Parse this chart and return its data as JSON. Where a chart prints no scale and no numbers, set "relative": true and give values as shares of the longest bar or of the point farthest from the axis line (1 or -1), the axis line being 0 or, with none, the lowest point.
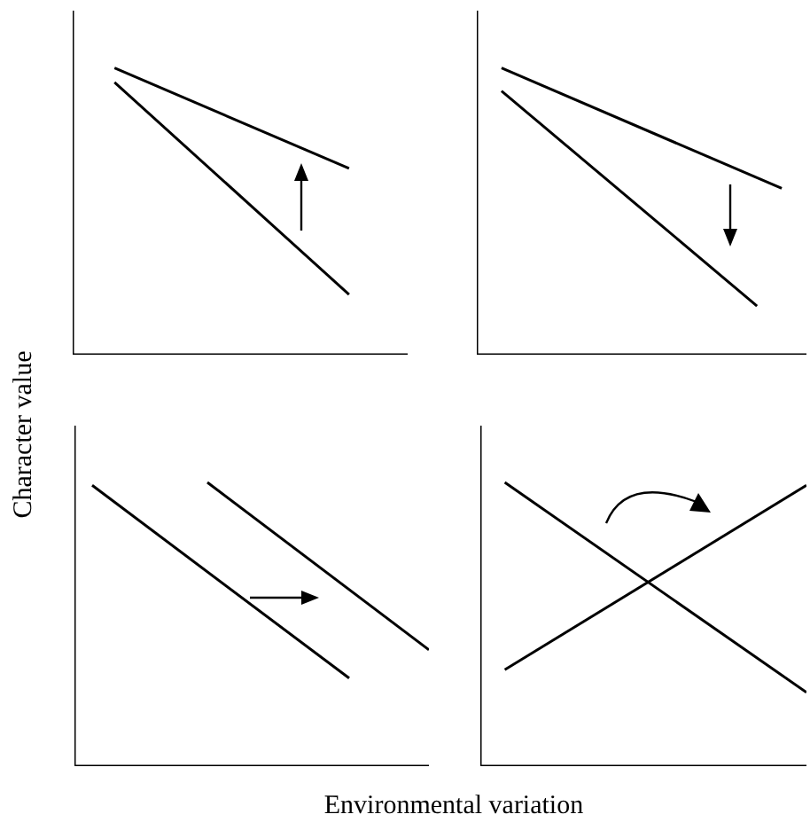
{
  "chart_data": [
    {
      "type": "line",
      "ylabel": "Character value",
      "relative": true,
      "tick_labels": false,
      "legend": false,
      "marker": "none",
      "categories": [
        null,
        null,
        null,
        null,
        null,
        null,
        null,
        null,
        null,
        null,
        null,
        null,
        null,
        null,
        null,
        null,
        null,
        null,
        null,
        null,
        null,
        null,
        null,
        null,
        null,
        null,
        null,
        null,
        null,
        null,
        null,
        null,
        null,
        null,
        null,
        null,
        null,
        null,
        null,
        null,
        null
      ],
      "series": [
        {
          "color": "#000000",
          "values": [
            null,
            null,
            null,
            null,
            null,
            1,
            null,
            null,
            null,
            null,
            null,
            null,
            null,
            null,
            null,
            null,
            null,
            null,
            null,
            null,
            null,
            null,
            null,
            null,
            null,
            null,
            null,
            null,
            null,
            null,
            null,
            null,
            null,
            0.65,
            null,
            null,
            null,
            null,
            null,
            null,
            null
          ]
        },
        {
          "color": "#000000",
          "values": [
            null,
            null,
            null,
            null,
            null,
            0.95,
            null,
            null,
            null,
            null,
            null,
            null,
            null,
            null,
            null,
            null,
            null,
            null,
            null,
            null,
            null,
            null,
            null,
            null,
            null,
            null,
            null,
            null,
            null,
            null,
            null,
            null,
            null,
            0.21,
            null,
            null,
            null,
            null,
            null,
            null,
            null
          ]
        }
      ]
    },
    {
      "type": "line",
      "relative": true,
      "tick_labels": false,
      "legend": false,
      "marker": "none",
      "categories": [
        null,
        null,
        null,
        null,
        null,
        null,
        null,
        null,
        null,
        null,
        null,
        null,
        null,
        null,
        null,
        null,
        null,
        null,
        null,
        null,
        null,
        null,
        null,
        null,
        null,
        null,
        null,
        null,
        null,
        null,
        null,
        null,
        null,
        null,
        null,
        null,
        null,
        null,
        null,
        null,
        null
      ],
      "series": [
        {
          "color": "#000000",
          "values": [
            null,
            null,
            null,
            1,
            null,
            null,
            null,
            null,
            null,
            null,
            null,
            null,
            null,
            null,
            null,
            null,
            null,
            null,
            null,
            null,
            null,
            null,
            null,
            null,
            null,
            null,
            null,
            null,
            null,
            null,
            null,
            null,
            null,
            null,
            null,
            null,
            null,
            0.58,
            null,
            null,
            null
          ]
        },
        {
          "color": "#000000",
          "values": [
            null,
            null,
            null,
            0.92,
            null,
            null,
            null,
            null,
            null,
            null,
            null,
            null,
            null,
            null,
            null,
            null,
            null,
            null,
            null,
            null,
            null,
            null,
            null,
            null,
            null,
            null,
            null,
            null,
            null,
            null,
            null,
            null,
            null,
            null,
            0.17,
            null,
            null,
            null,
            null,
            null,
            null
          ]
        }
      ]
    },
    {
      "type": "line",
      "xlabel": "Environmental variation",
      "relative": true,
      "tick_labels": false,
      "legend": false,
      "marker": "none",
      "categories": [
        null,
        null,
        null,
        null,
        null,
        null,
        null,
        null,
        null,
        null,
        null,
        null,
        null,
        null,
        null,
        null,
        null,
        null,
        null,
        null,
        null,
        null,
        null,
        null,
        null,
        null,
        null,
        null,
        null,
        null,
        null,
        null,
        null,
        null,
        null,
        null,
        null,
        null,
        null,
        null,
        null
      ],
      "series": [
        {
          "color": "#000000",
          "values": [
            null,
            null,
            0.99,
            null,
            null,
            null,
            null,
            null,
            null,
            null,
            null,
            null,
            null,
            null,
            null,
            null,
            null,
            null,
            null,
            null,
            null,
            null,
            null,
            null,
            null,
            null,
            null,
            null,
            null,
            null,
            null,
            0.31,
            null,
            null,
            null,
            null,
            null,
            null,
            null,
            null,
            null
          ]
        },
        {
          "color": "#000000",
          "values": [
            null,
            null,
            null,
            null,
            null,
            null,
            null,
            null,
            null,
            null,
            null,
            null,
            null,
            null,
            null,
            1,
            null,
            null,
            null,
            null,
            null,
            null,
            null,
            null,
            null,
            null,
            null,
            null,
            null,
            null,
            null,
            null,
            null,
            null,
            null,
            null,
            null,
            null,
            null,
            null,
            0.41
          ]
        }
      ]
    },
    {
      "type": "line",
      "relative": true,
      "tick_labels": false,
      "legend": false,
      "marker": "none",
      "categories": [
        null,
        null,
        null,
        null,
        null,
        null,
        null,
        null,
        null,
        null,
        null,
        null,
        null,
        null,
        null,
        null,
        null,
        null,
        null,
        null,
        null,
        null,
        null,
        null,
        null,
        null,
        null,
        null,
        null,
        null,
        null,
        null,
        null,
        null,
        null,
        null,
        null,
        null,
        null,
        null,
        null
      ],
      "series": [
        {
          "color": "#000000",
          "values": [
            null,
            null,
            null,
            1,
            null,
            null,
            null,
            null,
            null,
            null,
            null,
            null,
            null,
            null,
            null,
            null,
            null,
            null,
            null,
            null,
            null,
            null,
            null,
            null,
            null,
            null,
            null,
            null,
            null,
            null,
            null,
            null,
            null,
            null,
            null,
            null,
            null,
            null,
            null,
            null,
            0.26
          ]
        },
        {
          "color": "#000000",
          "values": [
            null,
            null,
            null,
            0.34,
            null,
            null,
            null,
            null,
            null,
            null,
            null,
            null,
            null,
            null,
            null,
            null,
            null,
            null,
            null,
            null,
            null,
            null,
            null,
            null,
            null,
            null,
            null,
            null,
            null,
            null,
            null,
            null,
            null,
            null,
            null,
            null,
            null,
            null,
            null,
            null,
            0.99
          ]
        }
      ]
    }
  ]
}
